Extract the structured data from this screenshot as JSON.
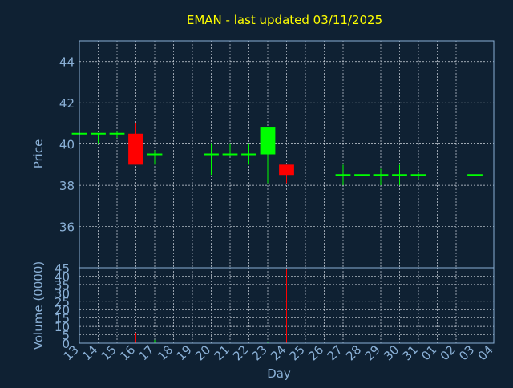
{
  "colors": {
    "background": "#0f2133",
    "title": "#ffff00",
    "axis": "#8ab0d6",
    "grid": "#d0d8e0",
    "up": "#00ff00",
    "down": "#ff0000"
  },
  "chart_data": {
    "type": "candlestick",
    "title": "EMAN - last updated 03/11/2025",
    "grid": true,
    "price_panel": {
      "ylabel": "Price",
      "ylim": [
        34,
        45
      ],
      "yticks": [
        36,
        38,
        40,
        42,
        44
      ]
    },
    "volume_panel": {
      "ylabel": "Volume (0000)",
      "ylim": [
        0,
        45
      ],
      "yticks": [
        0,
        5,
        10,
        15,
        20,
        25,
        30,
        35,
        40,
        45
      ]
    },
    "xlabel": "Day",
    "x_ticks": [
      "13",
      "14",
      "15",
      "16",
      "17",
      "18",
      "19",
      "20",
      "21",
      "22",
      "23",
      "24",
      "25",
      "26",
      "27",
      "28",
      "29",
      "30",
      "31",
      "01",
      "02",
      "03",
      "04"
    ],
    "candles": [
      {
        "day": "13",
        "open": 40.5,
        "high": 40.5,
        "low": 40.5,
        "close": 40.5,
        "volume": 0
      },
      {
        "day": "14",
        "open": 40.5,
        "high": 40.5,
        "low": 40.0,
        "close": 40.5,
        "volume": 0
      },
      {
        "day": "15",
        "open": 40.5,
        "high": 40.6,
        "low": 40.3,
        "close": 40.5,
        "volume": 0
      },
      {
        "day": "16",
        "open": 40.5,
        "high": 41.0,
        "low": 39.0,
        "close": 39.0,
        "volume": 6
      },
      {
        "day": "17",
        "open": 39.5,
        "high": 39.7,
        "low": 39.0,
        "close": 39.5,
        "volume": 2
      },
      {
        "day": "20",
        "open": 39.5,
        "high": 40.0,
        "low": 38.5,
        "close": 39.5,
        "volume": 0
      },
      {
        "day": "21",
        "open": 39.5,
        "high": 40.0,
        "low": 39.4,
        "close": 39.5,
        "volume": 0
      },
      {
        "day": "22",
        "open": 39.5,
        "high": 40.0,
        "low": 39.0,
        "close": 39.5,
        "volume": 0
      },
      {
        "day": "23",
        "open": 39.5,
        "high": 40.8,
        "low": 38.1,
        "close": 40.8,
        "volume": 1
      },
      {
        "day": "24",
        "open": 39.0,
        "high": 39.0,
        "low": 38.1,
        "close": 38.5,
        "volume": 44
      },
      {
        "day": "27",
        "open": 38.5,
        "high": 39.0,
        "low": 38.0,
        "close": 38.5,
        "volume": 0
      },
      {
        "day": "28",
        "open": 38.5,
        "high": 38.7,
        "low": 38.0,
        "close": 38.5,
        "volume": 0
      },
      {
        "day": "29",
        "open": 38.5,
        "high": 38.8,
        "low": 38.0,
        "close": 38.5,
        "volume": 0
      },
      {
        "day": "30",
        "open": 38.5,
        "high": 39.0,
        "low": 38.0,
        "close": 38.5,
        "volume": 0
      },
      {
        "day": "31",
        "open": 38.5,
        "high": 38.6,
        "low": 38.3,
        "close": 38.5,
        "volume": 0
      },
      {
        "day": "03",
        "open": 38.5,
        "high": 38.5,
        "low": 38.2,
        "close": 38.5,
        "volume": 6
      }
    ]
  }
}
